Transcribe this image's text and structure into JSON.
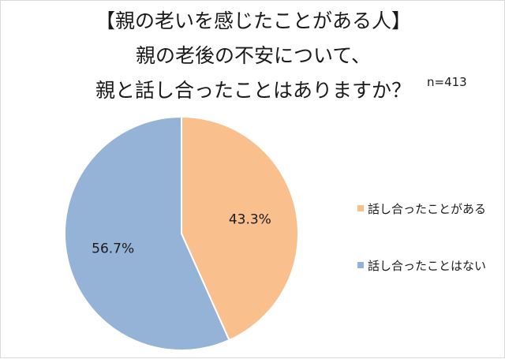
{
  "chart_data": {
    "type": "pie",
    "title_lines": [
      "【親の老いを感じたことがある人】",
      "親の老後の不安について、",
      "親と話し合ったことはありますか？"
    ],
    "note": "n=413",
    "slices": [
      {
        "label": "話し合ったことがある",
        "value": 43.3,
        "value_label": "43.3%",
        "color": "#F9C08E"
      },
      {
        "label": "話し合ったことはない",
        "value": 56.7,
        "value_label": "56.7%",
        "color": "#95B3D7"
      }
    ],
    "legend_position": "right",
    "start_angle": "12 o'clock",
    "direction": "clockwise"
  }
}
